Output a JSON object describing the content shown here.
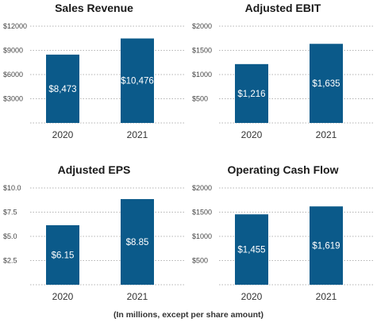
{
  "footnote": "(In millions, except per share amount)",
  "colors": {
    "bar": "#0b5a8a",
    "grid": "#9a9a9a"
  },
  "chart_data": [
    {
      "type": "bar",
      "title": "Sales Revenue",
      "categories": [
        "2020",
        "2021"
      ],
      "values": [
        8473,
        10476
      ],
      "value_labels": [
        "$8,473",
        "$10,476"
      ],
      "yticks": [
        3000,
        6000,
        9000,
        12000
      ],
      "ytick_labels": [
        "$3000",
        "$6000",
        "$9000",
        "$12000"
      ],
      "ylim": [
        0,
        12000
      ],
      "grid": true
    },
    {
      "type": "bar",
      "title": "Adjusted EBIT",
      "categories": [
        "2020",
        "2021"
      ],
      "values": [
        1216,
        1635
      ],
      "value_labels": [
        "$1,216",
        "$1,635"
      ],
      "yticks": [
        500,
        1000,
        1500,
        2000
      ],
      "ytick_labels": [
        "$500",
        "$1000",
        "$1500",
        "$2000"
      ],
      "ylim": [
        0,
        2000
      ],
      "grid": true
    },
    {
      "type": "bar",
      "title": "Adjusted EPS",
      "categories": [
        "2020",
        "2021"
      ],
      "values": [
        6.15,
        8.85
      ],
      "value_labels": [
        "$6.15",
        "$8.85"
      ],
      "yticks": [
        2.5,
        5.0,
        7.5,
        10.0
      ],
      "ytick_labels": [
        "$2.5",
        "$5.0",
        "$7.5",
        "$10.0"
      ],
      "ylim": [
        0,
        10
      ],
      "grid": true
    },
    {
      "type": "bar",
      "title": "Operating Cash Flow",
      "categories": [
        "2020",
        "2021"
      ],
      "values": [
        1455,
        1619
      ],
      "value_labels": [
        "$1,455",
        "$1,619"
      ],
      "yticks": [
        500,
        1000,
        1500,
        2000
      ],
      "ytick_labels": [
        "$500",
        "$1000",
        "$1500",
        "$2000"
      ],
      "ylim": [
        0,
        2000
      ],
      "grid": true
    }
  ]
}
